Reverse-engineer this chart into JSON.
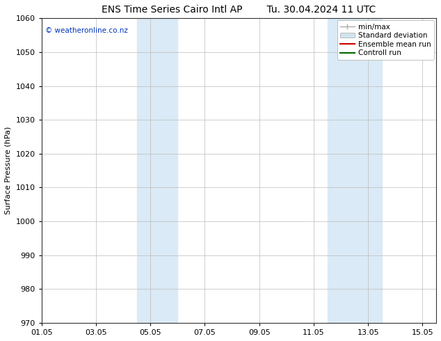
{
  "title_left": "ENS Time Series Cairo Intl AP",
  "title_right": "Tu. 30.04.2024 11 UTC",
  "ylabel": "Surface Pressure (hPa)",
  "ylim": [
    970,
    1060
  ],
  "yticks": [
    970,
    980,
    990,
    1000,
    1010,
    1020,
    1030,
    1040,
    1050,
    1060
  ],
  "xlim": [
    0,
    14.5
  ],
  "xtick_labels": [
    "01.05",
    "03.05",
    "05.05",
    "07.05",
    "09.05",
    "11.05",
    "13.05",
    "15.05"
  ],
  "xtick_positions": [
    0,
    2,
    4,
    6,
    8,
    10,
    12,
    14
  ],
  "shaded_bands": [
    {
      "x_start": 3.5,
      "x_end": 5.0
    },
    {
      "x_start": 10.5,
      "x_end": 12.5
    }
  ],
  "shaded_color": "#daeaf6",
  "watermark_text": "© weatheronline.co.nz",
  "watermark_color": "#0033bb",
  "legend_items": [
    {
      "label": "min/max",
      "color": "#aaaaaa",
      "lw": 1.0,
      "linestyle": "-",
      "type": "line"
    },
    {
      "label": "Standard deviation",
      "color": "#d0e4f0",
      "lw": 6,
      "linestyle": "-",
      "type": "patch"
    },
    {
      "label": "Ensemble mean run",
      "color": "#cc0000",
      "lw": 1.5,
      "linestyle": "-",
      "type": "line"
    },
    {
      "label": "Controll run",
      "color": "#006600",
      "lw": 1.5,
      "linestyle": "-",
      "type": "line"
    }
  ],
  "bg_color": "#ffffff",
  "grid_color": "#bbbbbb",
  "title_fontsize": 10,
  "axis_fontsize": 8,
  "tick_fontsize": 8,
  "legend_fontsize": 7.5
}
